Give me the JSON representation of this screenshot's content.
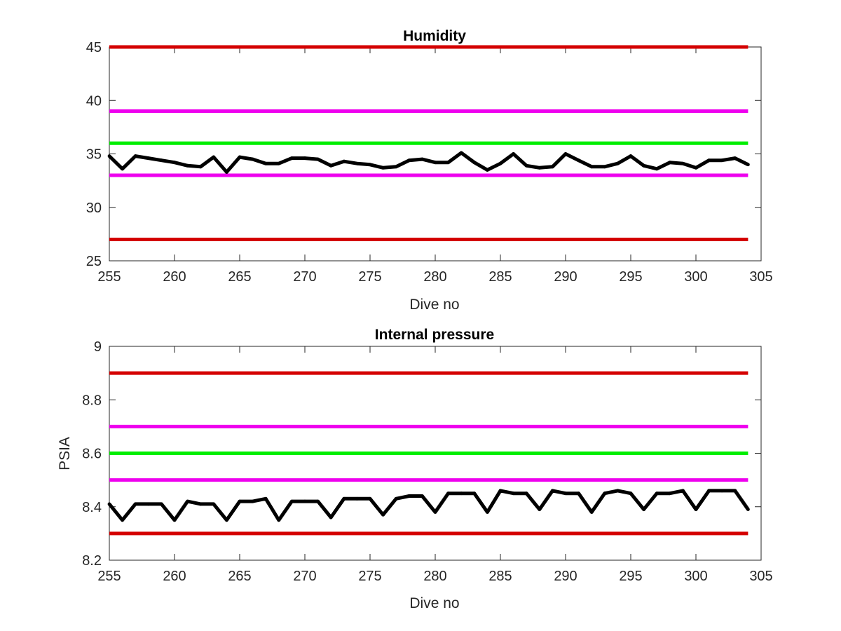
{
  "chart_data": [
    {
      "type": "line",
      "title": "Humidity",
      "xlabel": "Dive no",
      "ylabel": "",
      "xlim": [
        255,
        305
      ],
      "ylim": [
        25,
        45
      ],
      "xticks": [
        255,
        260,
        265,
        270,
        275,
        280,
        285,
        290,
        295,
        300,
        305
      ],
      "yticks": [
        25,
        30,
        35,
        40,
        45
      ],
      "grid": false,
      "threshold_lines": [
        {
          "value": 45,
          "color": "#d40000"
        },
        {
          "value": 39,
          "color": "#ee00ee"
        },
        {
          "value": 36,
          "color": "#00ee00"
        },
        {
          "value": 33,
          "color": "#ee00ee"
        },
        {
          "value": 27,
          "color": "#d40000"
        }
      ],
      "series": [
        {
          "color": "#000000",
          "x": [
            255,
            256,
            257,
            258,
            259,
            260,
            261,
            262,
            263,
            264,
            265,
            266,
            267,
            268,
            269,
            270,
            271,
            272,
            273,
            274,
            275,
            276,
            277,
            278,
            279,
            280,
            281,
            282,
            283,
            284,
            285,
            286,
            287,
            288,
            289,
            290,
            291,
            292,
            293,
            294,
            295,
            296,
            297,
            298,
            299,
            300,
            301,
            302,
            303,
            304
          ],
          "values": [
            34.8,
            33.6,
            34.8,
            34.6,
            34.4,
            34.2,
            33.9,
            33.8,
            34.7,
            33.3,
            34.7,
            34.5,
            34.1,
            34.1,
            34.6,
            34.6,
            34.5,
            33.9,
            34.3,
            34.1,
            34.0,
            33.7,
            33.8,
            34.4,
            34.5,
            34.2,
            34.2,
            35.1,
            34.2,
            33.5,
            34.1,
            35.0,
            33.9,
            33.7,
            33.8,
            35.0,
            34.4,
            33.8,
            33.8,
            34.1,
            34.8,
            33.9,
            33.6,
            34.2,
            34.1,
            33.7,
            34.4,
            34.4,
            34.6,
            34.0
          ]
        }
      ]
    },
    {
      "type": "line",
      "title": "Internal pressure",
      "xlabel": "Dive no",
      "ylabel": "PSIA",
      "xlim": [
        255,
        305
      ],
      "ylim": [
        8.2,
        9.0
      ],
      "xticks": [
        255,
        260,
        265,
        270,
        275,
        280,
        285,
        290,
        295,
        300,
        305
      ],
      "yticks": [
        8.2,
        8.4,
        8.6,
        8.8,
        9.0
      ],
      "ytick_labels": [
        "8.2",
        "8.4",
        "8.6",
        "8.8",
        "9"
      ],
      "grid": false,
      "threshold_lines": [
        {
          "value": 8.9,
          "color": "#d40000"
        },
        {
          "value": 8.7,
          "color": "#ee00ee"
        },
        {
          "value": 8.6,
          "color": "#00ee00"
        },
        {
          "value": 8.5,
          "color": "#ee00ee"
        },
        {
          "value": 8.3,
          "color": "#d40000"
        }
      ],
      "series": [
        {
          "color": "#000000",
          "x": [
            255,
            256,
            257,
            258,
            259,
            260,
            261,
            262,
            263,
            264,
            265,
            266,
            267,
            268,
            269,
            270,
            271,
            272,
            273,
            274,
            275,
            276,
            277,
            278,
            279,
            280,
            281,
            282,
            283,
            284,
            285,
            286,
            287,
            288,
            289,
            290,
            291,
            292,
            293,
            294,
            295,
            296,
            297,
            298,
            299,
            300,
            301,
            302,
            303,
            304
          ],
          "values": [
            8.41,
            8.35,
            8.41,
            8.41,
            8.41,
            8.35,
            8.42,
            8.41,
            8.41,
            8.35,
            8.42,
            8.42,
            8.43,
            8.35,
            8.42,
            8.42,
            8.42,
            8.36,
            8.43,
            8.43,
            8.43,
            8.37,
            8.43,
            8.44,
            8.44,
            8.38,
            8.45,
            8.45,
            8.45,
            8.38,
            8.46,
            8.45,
            8.45,
            8.39,
            8.46,
            8.45,
            8.45,
            8.38,
            8.45,
            8.46,
            8.45,
            8.39,
            8.45,
            8.45,
            8.46,
            8.39,
            8.46,
            8.46,
            8.46,
            8.39
          ]
        }
      ]
    }
  ]
}
